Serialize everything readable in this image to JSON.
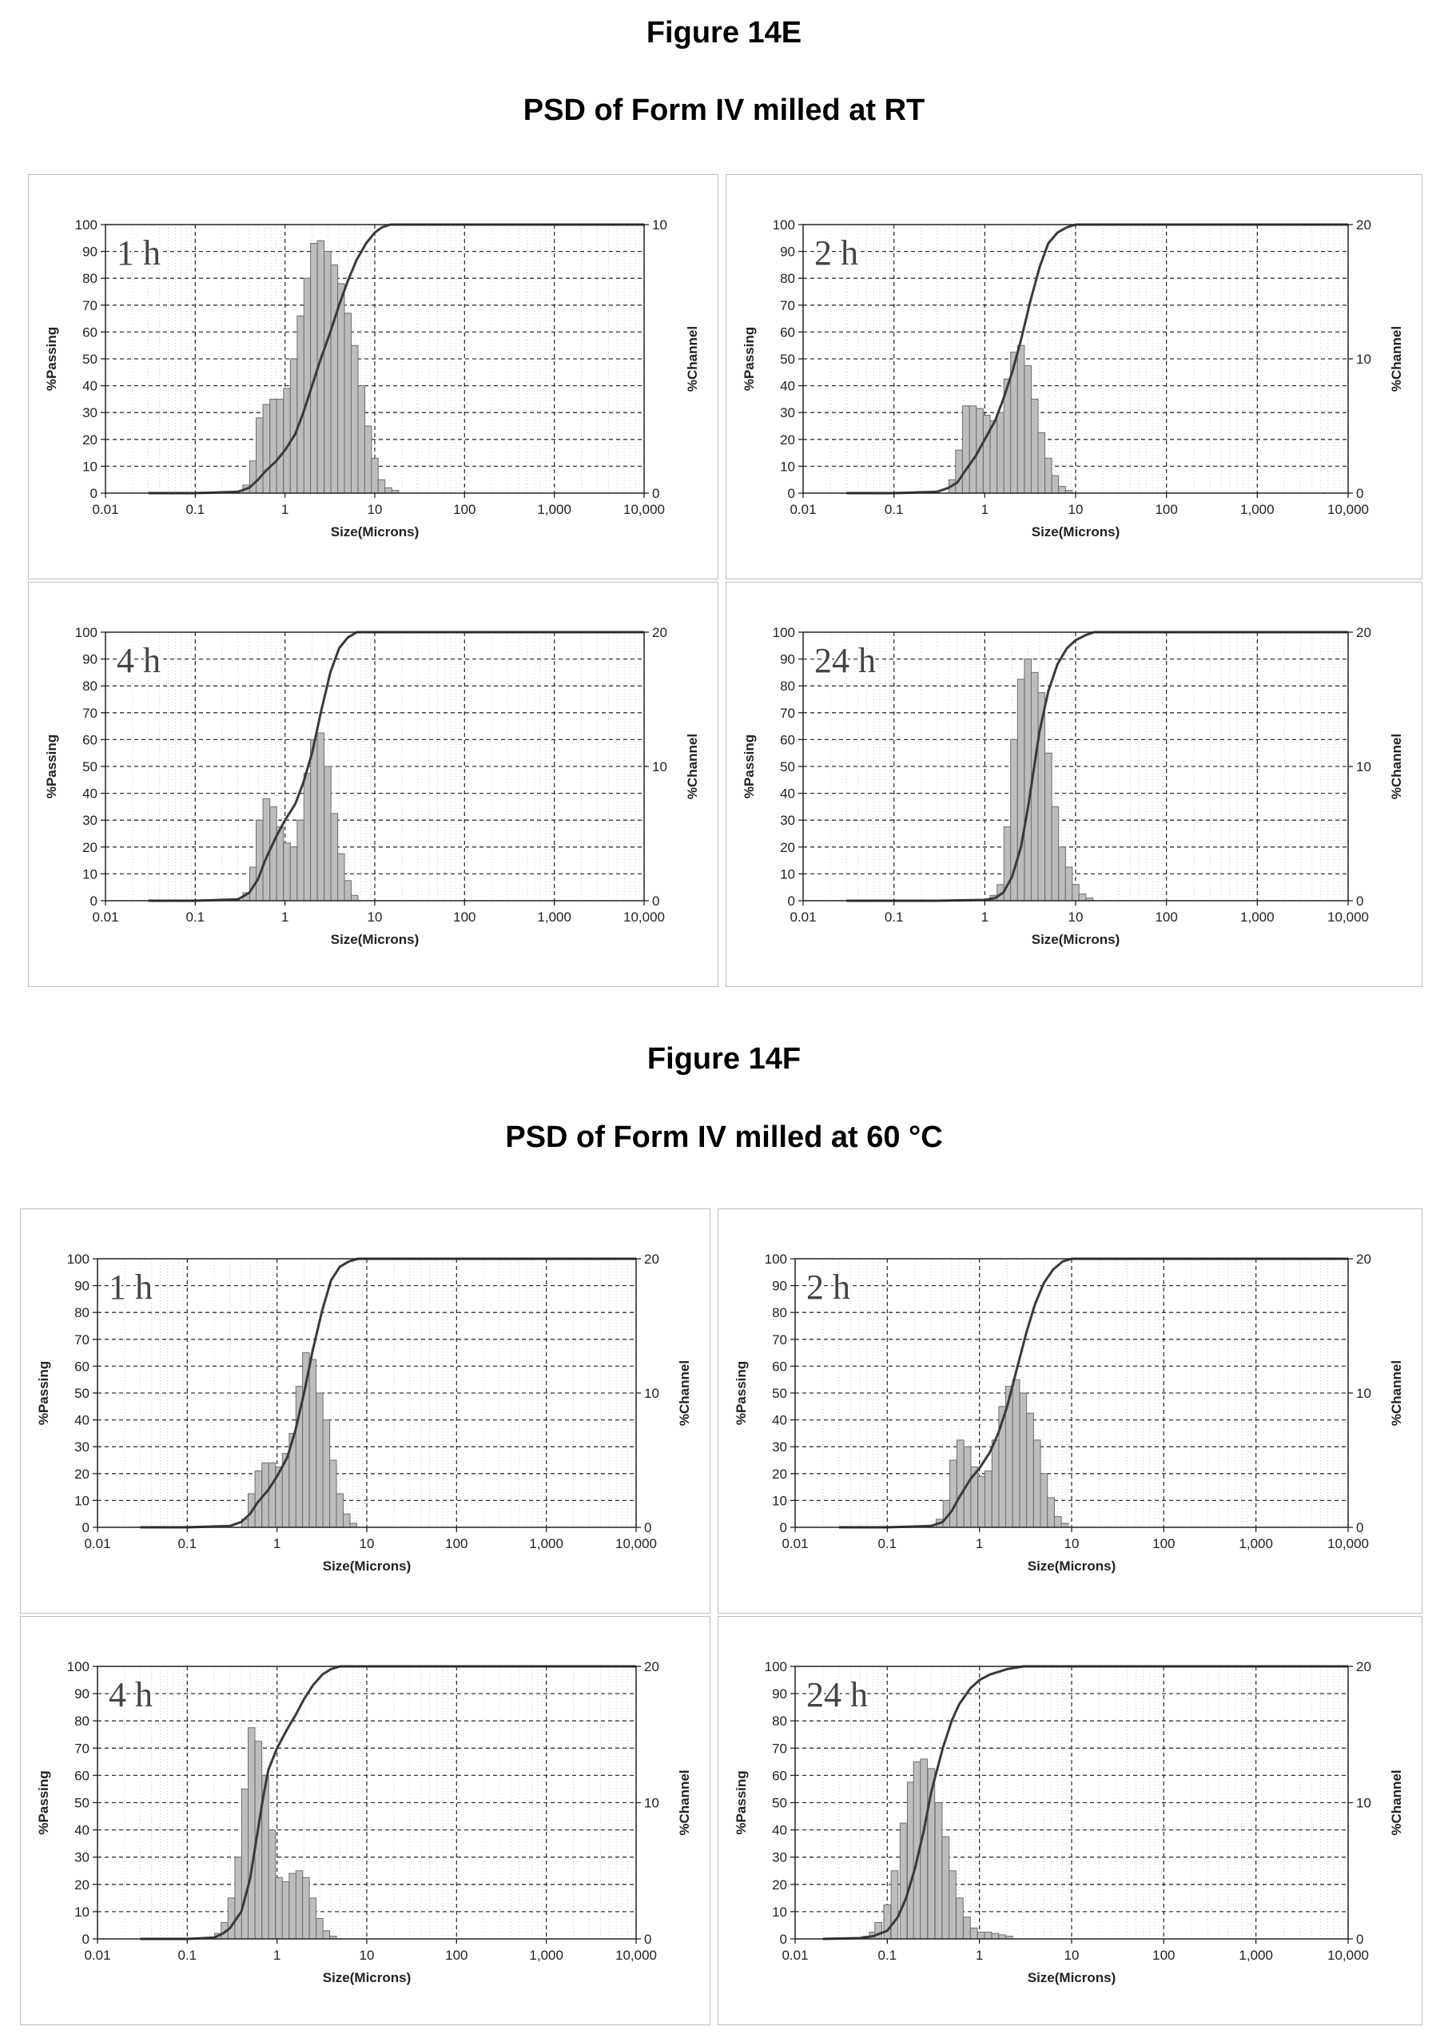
{
  "figure_14e": {
    "title": "Figure 14E",
    "subtitle": "PSD of Form IV milled at RT"
  },
  "figure_14f": {
    "title": "Figure 14F",
    "subtitle": "PSD of Form IV milled at 60 °C"
  },
  "chart_data": [
    {
      "type": "bar",
      "figure": "Figure 14E",
      "panel_label": "1 h",
      "xlabel": "Size(Microns)",
      "ylabel": "%Passing",
      "y2label": "%Channel",
      "x_scale": "log",
      "xlim": [
        0.01,
        10000
      ],
      "ylim": [
        0,
        100
      ],
      "y2lim": [
        0,
        10
      ],
      "x_ticks": [
        "0.01",
        "0.1",
        "1",
        "10",
        "100",
        "1,000",
        "10,000"
      ],
      "y_ticks": [
        "0",
        "10",
        "20",
        "30",
        "40",
        "50",
        "60",
        "70",
        "80",
        "90",
        "100"
      ],
      "y2_ticks": [
        "0",
        "10"
      ],
      "grid": true,
      "series": [
        {
          "kind": "bar",
          "axis": "y2",
          "x": [
            0.37,
            0.44,
            0.52,
            0.62,
            0.74,
            0.88,
            1.05,
            1.25,
            1.49,
            1.77,
            2.1,
            2.5,
            2.98,
            3.54,
            4.21,
            5.01,
            5.96,
            7.09,
            8.43,
            10.0,
            11.9,
            14.2,
            16.9
          ],
          "values": [
            0.3,
            1.2,
            2.8,
            3.3,
            3.5,
            3.5,
            3.9,
            5.0,
            6.6,
            8.0,
            9.3,
            9.4,
            9.0,
            8.5,
            7.8,
            6.7,
            5.5,
            4.0,
            2.5,
            1.3,
            0.5,
            0.2,
            0.1
          ]
        },
        {
          "kind": "line",
          "axis": "y",
          "x": [
            0.03,
            0.1,
            0.3,
            0.4,
            0.5,
            0.6,
            0.8,
            1.0,
            1.3,
            1.6,
            2.0,
            2.5,
            3.2,
            4.0,
            5.0,
            6.3,
            8.0,
            10.0,
            12.0,
            15.0,
            20.0,
            10000
          ],
          "values": [
            0,
            0,
            0.5,
            2,
            5,
            8,
            12,
            16,
            22,
            30,
            40,
            50,
            60,
            70,
            79,
            87,
            93,
            97,
            99,
            100,
            100,
            100
          ]
        }
      ]
    },
    {
      "type": "bar",
      "figure": "Figure 14E",
      "panel_label": "2 h",
      "xlabel": "Size(Microns)",
      "ylabel": "%Passing",
      "y2label": "%Channel",
      "x_scale": "log",
      "xlim": [
        0.01,
        10000
      ],
      "ylim": [
        0,
        100
      ],
      "y2lim": [
        0,
        20
      ],
      "x_ticks": [
        "0.01",
        "0.1",
        "1",
        "10",
        "100",
        "1,000",
        "10,000"
      ],
      "y_ticks": [
        "0",
        "10",
        "20",
        "30",
        "40",
        "50",
        "60",
        "70",
        "80",
        "90",
        "100"
      ],
      "y2_ticks": [
        "0",
        "10",
        "20"
      ],
      "grid": true,
      "series": [
        {
          "kind": "bar",
          "axis": "y2",
          "x": [
            0.44,
            0.52,
            0.62,
            0.74,
            0.88,
            1.05,
            1.25,
            1.49,
            1.77,
            2.1,
            2.5,
            2.98,
            3.54,
            4.21,
            5.01,
            5.96,
            7.09,
            8.43
          ],
          "values": [
            1.0,
            3.2,
            6.5,
            6.5,
            6.3,
            5.8,
            5.4,
            6.0,
            8.5,
            10.5,
            11.0,
            9.5,
            7.0,
            4.5,
            2.6,
            1.3,
            0.5,
            0.2
          ]
        },
        {
          "kind": "line",
          "axis": "y",
          "x": [
            0.03,
            0.1,
            0.3,
            0.4,
            0.5,
            0.6,
            0.8,
            1.0,
            1.3,
            1.6,
            2.0,
            2.5,
            3.2,
            4.0,
            5.0,
            6.3,
            8.0,
            10.0,
            10000
          ],
          "values": [
            0,
            0,
            0.5,
            2,
            4,
            8,
            14,
            20,
            27,
            35,
            45,
            57,
            72,
            84,
            93,
            97,
            99,
            100,
            100
          ]
        }
      ]
    },
    {
      "type": "bar",
      "figure": "Figure 14E",
      "panel_label": "4 h",
      "xlabel": "Size(Microns)",
      "ylabel": "%Passing",
      "y2label": "%Channel",
      "x_scale": "log",
      "xlim": [
        0.01,
        10000
      ],
      "ylim": [
        0,
        100
      ],
      "y2lim": [
        0,
        20
      ],
      "x_ticks": [
        "0.01",
        "0.1",
        "1",
        "10",
        "100",
        "1,000",
        "10,000"
      ],
      "y_ticks": [
        "0",
        "10",
        "20",
        "30",
        "40",
        "50",
        "60",
        "70",
        "80",
        "90",
        "100"
      ],
      "y2_ticks": [
        "0",
        "10",
        "20"
      ],
      "grid": true,
      "series": [
        {
          "kind": "bar",
          "axis": "y2",
          "x": [
            0.37,
            0.44,
            0.52,
            0.62,
            0.74,
            0.88,
            1.05,
            1.25,
            1.49,
            1.77,
            2.1,
            2.5,
            2.98,
            3.54,
            4.21,
            5.01,
            5.96
          ],
          "values": [
            0.6,
            2.5,
            6.0,
            7.6,
            7.0,
            5.5,
            4.3,
            4.0,
            6.0,
            9.5,
            12.0,
            12.5,
            10.0,
            6.5,
            3.5,
            1.5,
            0.4
          ]
        },
        {
          "kind": "line",
          "axis": "y",
          "x": [
            0.03,
            0.1,
            0.3,
            0.4,
            0.5,
            0.6,
            0.8,
            1.0,
            1.3,
            1.6,
            2.0,
            2.5,
            3.2,
            4.0,
            5.0,
            6.3,
            8.0,
            10000
          ],
          "values": [
            0,
            0,
            0.5,
            3,
            8,
            15,
            24,
            30,
            36,
            44,
            55,
            70,
            85,
            94,
            98,
            100,
            100,
            100
          ]
        }
      ]
    },
    {
      "type": "bar",
      "figure": "Figure 14E",
      "panel_label": "24 h",
      "xlabel": "Size(Microns)",
      "ylabel": "%Passing",
      "y2label": "%Channel",
      "x_scale": "log",
      "xlim": [
        0.01,
        10000
      ],
      "ylim": [
        0,
        100
      ],
      "y2lim": [
        0,
        20
      ],
      "x_ticks": [
        "0.01",
        "0.1",
        "1",
        "10",
        "100",
        "1,000",
        "10,000"
      ],
      "y_ticks": [
        "0",
        "10",
        "20",
        "30",
        "40",
        "50",
        "60",
        "70",
        "80",
        "90",
        "100"
      ],
      "y2_ticks": [
        "0",
        "10",
        "20"
      ],
      "grid": true,
      "series": [
        {
          "kind": "bar",
          "axis": "y2",
          "x": [
            1.25,
            1.49,
            1.77,
            2.1,
            2.5,
            2.98,
            3.54,
            4.21,
            5.01,
            5.96,
            7.09,
            8.43,
            10.0,
            11.9,
            14.2
          ],
          "values": [
            0.4,
            1.2,
            5.5,
            12.0,
            16.5,
            18.0,
            17.0,
            15.5,
            11.0,
            7.0,
            4.0,
            2.5,
            1.2,
            0.5,
            0.2
          ]
        },
        {
          "kind": "line",
          "axis": "y",
          "x": [
            0.03,
            0.3,
            1.0,
            1.3,
            1.6,
            2.0,
            2.5,
            3.0,
            3.5,
            4.0,
            5.0,
            6.3,
            8.0,
            10.0,
            13.0,
            16.0,
            20.0,
            10000
          ],
          "values": [
            0,
            0,
            0.3,
            1,
            3,
            9,
            20,
            35,
            50,
            63,
            78,
            88,
            94,
            97,
            99,
            100,
            100,
            100
          ]
        }
      ]
    },
    {
      "type": "bar",
      "figure": "Figure 14F",
      "panel_label": "1 h",
      "xlabel": "Size(Microns)",
      "ylabel": "%Passing",
      "y2label": "%Channel",
      "x_scale": "log",
      "xlim": [
        0.01,
        10000
      ],
      "ylim": [
        0,
        100
      ],
      "y2lim": [
        0,
        20
      ],
      "x_ticks": [
        "0.01",
        "0.1",
        "1",
        "10",
        "100",
        "1,000",
        "10,000"
      ],
      "y_ticks": [
        "0",
        "10",
        "20",
        "30",
        "40",
        "50",
        "60",
        "70",
        "80",
        "90",
        "100"
      ],
      "y2_ticks": [
        "0",
        "10",
        "20"
      ],
      "grid": true,
      "series": [
        {
          "kind": "bar",
          "axis": "y2",
          "x": [
            0.44,
            0.52,
            0.62,
            0.74,
            0.88,
            1.05,
            1.25,
            1.49,
            1.77,
            2.1,
            2.5,
            2.98,
            3.54,
            4.21,
            5.01,
            5.96,
            7.09
          ],
          "values": [
            0.6,
            2.5,
            4.2,
            4.8,
            4.8,
            4.5,
            5.5,
            7.0,
            10.5,
            13.0,
            12.5,
            10.0,
            8.0,
            5.0,
            2.5,
            1.0,
            0.3
          ]
        },
        {
          "kind": "line",
          "axis": "y",
          "x": [
            0.03,
            0.1,
            0.3,
            0.4,
            0.5,
            0.6,
            0.8,
            1.0,
            1.3,
            1.6,
            2.0,
            2.5,
            3.2,
            4.0,
            5.0,
            6.3,
            8.0,
            10000
          ],
          "values": [
            0,
            0,
            0.5,
            2,
            5,
            9,
            14,
            19,
            26,
            36,
            50,
            66,
            81,
            92,
            97,
            99,
            100,
            100
          ]
        }
      ]
    },
    {
      "type": "bar",
      "figure": "Figure 14F",
      "panel_label": "2 h",
      "xlabel": "Size(Microns)",
      "ylabel": "%Passing",
      "y2label": "%Channel",
      "x_scale": "log",
      "xlim": [
        0.01,
        10000
      ],
      "ylim": [
        0,
        100
      ],
      "y2lim": [
        0,
        20
      ],
      "x_ticks": [
        "0.01",
        "0.1",
        "1",
        "10",
        "100",
        "1,000",
        "10,000"
      ],
      "y_ticks": [
        "0",
        "10",
        "20",
        "30",
        "40",
        "50",
        "60",
        "70",
        "80",
        "90",
        "100"
      ],
      "y2_ticks": [
        "0",
        "10",
        "20"
      ],
      "grid": true,
      "series": [
        {
          "kind": "bar",
          "axis": "y2",
          "x": [
            0.37,
            0.44,
            0.52,
            0.62,
            0.74,
            0.88,
            1.05,
            1.25,
            1.49,
            1.77,
            2.1,
            2.5,
            2.98,
            3.54,
            4.21,
            5.01,
            5.96,
            7.09,
            8.43
          ],
          "values": [
            0.6,
            2.0,
            5.0,
            6.5,
            6.0,
            4.5,
            3.8,
            4.2,
            6.5,
            9.0,
            10.5,
            11.0,
            10.0,
            8.5,
            6.5,
            4.0,
            2.2,
            0.8,
            0.3
          ]
        },
        {
          "kind": "line",
          "axis": "y",
          "x": [
            0.03,
            0.1,
            0.3,
            0.4,
            0.5,
            0.6,
            0.8,
            1.0,
            1.3,
            1.6,
            2.0,
            2.5,
            3.2,
            4.0,
            5.0,
            6.3,
            8.0,
            10.0,
            10000
          ],
          "values": [
            0,
            0,
            0.5,
            2,
            6,
            11,
            18,
            22,
            28,
            35,
            45,
            58,
            72,
            83,
            91,
            96,
            99,
            100,
            100
          ]
        }
      ]
    },
    {
      "type": "bar",
      "figure": "Figure 14F",
      "panel_label": "4 h",
      "xlabel": "Size(Microns)",
      "ylabel": "%Passing",
      "y2label": "%Channel",
      "x_scale": "log",
      "xlim": [
        0.01,
        10000
      ],
      "ylim": [
        0,
        100
      ],
      "y2lim": [
        0,
        20
      ],
      "x_ticks": [
        "0.01",
        "0.1",
        "1",
        "10",
        "100",
        "1,000",
        "10,000"
      ],
      "y_ticks": [
        "0",
        "10",
        "20",
        "30",
        "40",
        "50",
        "60",
        "70",
        "80",
        "90",
        "100"
      ],
      "y2_ticks": [
        "0",
        "10",
        "20"
      ],
      "grid": true,
      "series": [
        {
          "kind": "bar",
          "axis": "y2",
          "x": [
            0.22,
            0.26,
            0.31,
            0.37,
            0.44,
            0.52,
            0.62,
            0.74,
            0.88,
            1.05,
            1.25,
            1.49,
            1.77,
            2.1,
            2.5,
            2.98,
            3.54,
            4.21
          ],
          "values": [
            0.4,
            1.2,
            3.0,
            6.0,
            11.0,
            15.5,
            14.5,
            12.0,
            8.0,
            4.5,
            4.2,
            4.8,
            5.0,
            4.5,
            3.0,
            1.5,
            0.6,
            0.2
          ]
        },
        {
          "kind": "line",
          "axis": "y",
          "x": [
            0.03,
            0.1,
            0.2,
            0.25,
            0.3,
            0.4,
            0.5,
            0.6,
            0.7,
            0.8,
            1.0,
            1.3,
            1.6,
            2.0,
            2.5,
            3.2,
            4.0,
            5.0,
            10000
          ],
          "values": [
            0,
            0,
            0.5,
            2,
            4,
            10,
            22,
            38,
            52,
            62,
            70,
            77,
            82,
            88,
            93,
            97,
            99,
            100,
            100
          ]
        }
      ]
    },
    {
      "type": "bar",
      "figure": "Figure 14F",
      "panel_label": "24 h",
      "xlabel": "Size(Microns)",
      "ylabel": "%Passing",
      "y2label": "%Channel",
      "x_scale": "log",
      "xlim": [
        0.01,
        10000
      ],
      "ylim": [
        0,
        100
      ],
      "y2lim": [
        0,
        20
      ],
      "x_ticks": [
        "0.01",
        "0.1",
        "1",
        "10",
        "100",
        "1,000",
        "10,000"
      ],
      "y_ticks": [
        "0",
        "10",
        "20",
        "30",
        "40",
        "50",
        "60",
        "70",
        "80",
        "90",
        "100"
      ],
      "y2_ticks": [
        "0",
        "10",
        "20"
      ],
      "grid": true,
      "series": [
        {
          "kind": "bar",
          "axis": "y2",
          "x": [
            0.06,
            0.07,
            0.08,
            0.1,
            0.12,
            0.15,
            0.18,
            0.21,
            0.25,
            0.3,
            0.36,
            0.43,
            0.51,
            0.61,
            0.73,
            0.87,
            1.04,
            1.24,
            1.48,
            1.76,
            2.1
          ],
          "values": [
            0.2,
            0.5,
            1.2,
            2.5,
            5.0,
            8.5,
            11.5,
            13.0,
            13.2,
            12.5,
            10.0,
            7.5,
            5.0,
            3.0,
            1.6,
            0.8,
            0.5,
            0.5,
            0.4,
            0.3,
            0.2
          ]
        },
        {
          "kind": "line",
          "axis": "y",
          "x": [
            0.02,
            0.05,
            0.07,
            0.1,
            0.13,
            0.16,
            0.2,
            0.25,
            0.3,
            0.4,
            0.5,
            0.6,
            0.8,
            1.0,
            1.3,
            2.0,
            3.0,
            5.0,
            10000
          ],
          "values": [
            0,
            0.3,
            1,
            3,
            8,
            15,
            26,
            40,
            54,
            70,
            80,
            86,
            92,
            95,
            97,
            99,
            100,
            100,
            100
          ]
        }
      ]
    }
  ]
}
